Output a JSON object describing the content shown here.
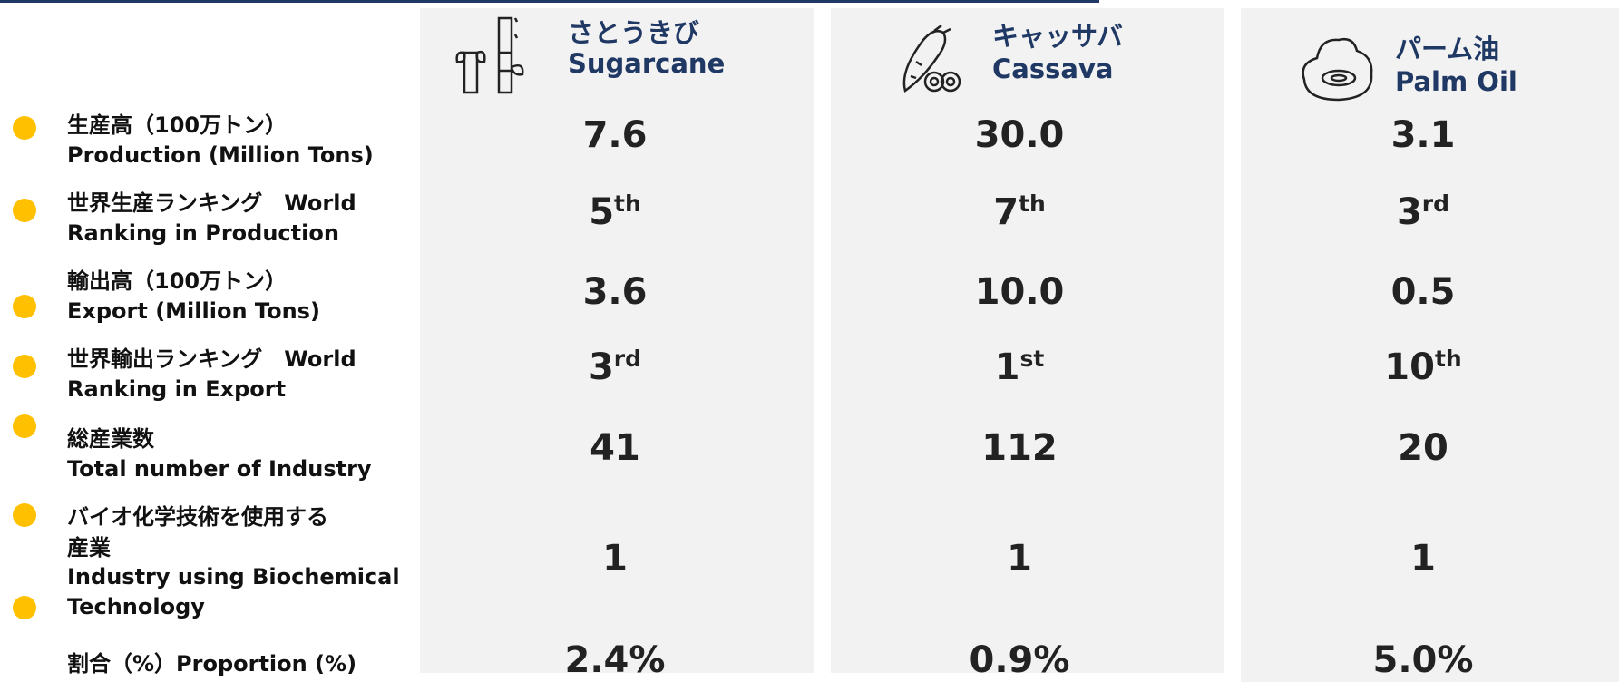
{
  "rows": [
    {
      "lines": [
        "生産高（100万トン）",
        "Production (Million Tons)"
      ]
    },
    {
      "lines": [
        "世界生産ランキング　World",
        "Ranking in Production"
      ]
    },
    {
      "lines": [
        "輸出高（100万トン）",
        "Export (Million Tons)"
      ]
    },
    {
      "lines": [
        "世界輸出ランキング　World",
        "Ranking in Export"
      ]
    },
    {
      "lines": [
        "総産業数",
        "Total number of Industry"
      ]
    },
    {
      "lines": [
        "バイオ化学技術を使用する",
        "産業",
        "Industry using Biochemical",
        "Technology"
      ]
    },
    {
      "lines": [
        "割合（%）Proportion (%)"
      ]
    }
  ],
  "columns": [
    {
      "name_ja": "さとうきび",
      "name_en": "Sugarcane",
      "values": [
        "7.6",
        {
          "number": "5",
          "suffix": "th"
        },
        "3.6",
        {
          "number": "3",
          "suffix": "rd"
        },
        "41",
        "1",
        "2.4%"
      ]
    },
    {
      "name_ja": "キャッサバ",
      "name_en": "Cassava",
      "values": [
        "30.0",
        {
          "number": "7",
          "suffix": "th"
        },
        "10.0",
        {
          "number": "1",
          "suffix": "st"
        },
        "112",
        "1",
        "0.9%"
      ]
    },
    {
      "name_ja": "パーム油",
      "name_en": "Palm Oil",
      "values": [
        "3.1",
        {
          "number": "3",
          "suffix": "rd"
        },
        "0.5",
        {
          "number": "10",
          "suffix": "th"
        },
        "20",
        "1",
        "5.0%"
      ]
    }
  ]
}
